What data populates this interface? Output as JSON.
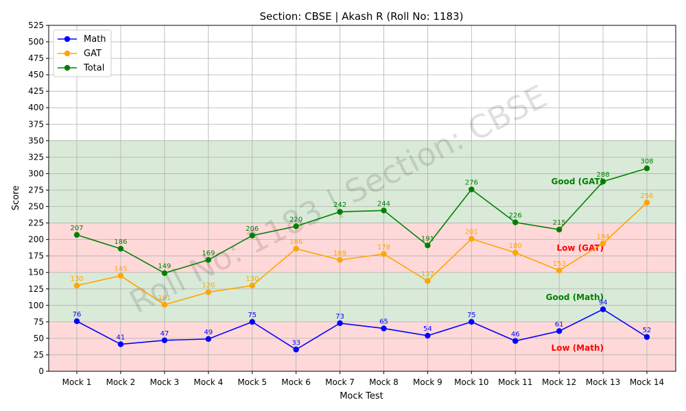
{
  "chart_data": {
    "type": "line",
    "title": "Section: CBSE | Akash R (Roll No: 1183)",
    "xlabel": "Mock Test",
    "ylabel": "Score",
    "ylim": [
      0,
      525
    ],
    "yticks": [
      0,
      25,
      50,
      75,
      100,
      125,
      150,
      175,
      200,
      225,
      250,
      275,
      300,
      325,
      350,
      375,
      400,
      425,
      450,
      475,
      500,
      525
    ],
    "grid": true,
    "legend_position": "top-left",
    "categories": [
      "Mock 1",
      "Mock 2",
      "Mock 3",
      "Mock 4",
      "Mock 5",
      "Mock 6",
      "Mock 7",
      "Mock 8",
      "Mock 9",
      "Mock 10",
      "Mock 11",
      "Mock 12",
      "Mock 13",
      "Mock 14"
    ],
    "series": [
      {
        "name": "Math",
        "color": "#0000ff",
        "values": [
          76,
          41,
          47,
          49,
          75,
          33,
          73,
          65,
          54,
          75,
          46,
          61,
          94,
          52
        ]
      },
      {
        "name": "GAT",
        "color": "#ffa500",
        "values": [
          130,
          145,
          101,
          120,
          130,
          186,
          169,
          178,
          137,
          201,
          180,
          153,
          194,
          256
        ]
      },
      {
        "name": "Total",
        "color": "#008000",
        "values": [
          207,
          186,
          149,
          169,
          206,
          220,
          242,
          244,
          191,
          276,
          226,
          215,
          288,
          308
        ]
      }
    ],
    "bands": [
      {
        "from": 0,
        "to": 75,
        "color": "#ffd9d9",
        "label": "Low (Math)",
        "label_color": "#ff0000"
      },
      {
        "from": 75,
        "to": 150,
        "color": "#d9ead8",
        "label": "Good (Math)",
        "label_color": "#008000"
      },
      {
        "from": 150,
        "to": 225,
        "color": "#ffd9d9",
        "label": "Low (GAT)",
        "label_color": "#ff0000"
      },
      {
        "from": 225,
        "to": 350,
        "color": "#d9ead8",
        "label": "Good (GAT)",
        "label_color": "#008000"
      }
    ],
    "watermark": "Roll No: 1183 | Section: CBSE"
  }
}
